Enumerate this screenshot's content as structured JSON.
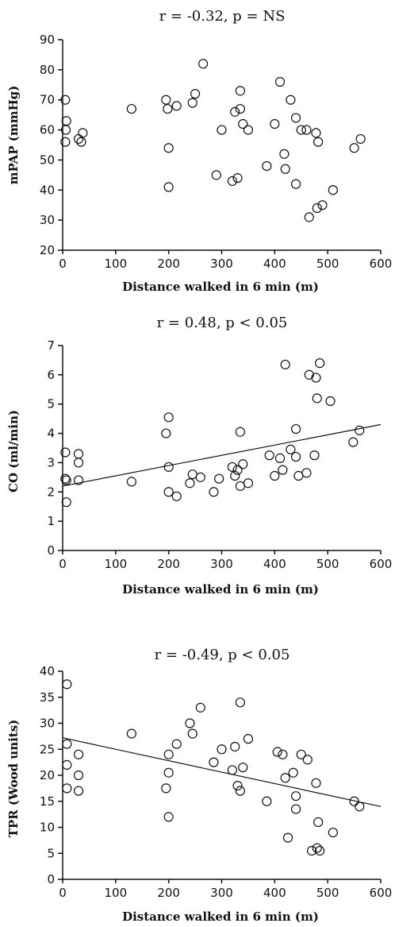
{
  "chart_data": [
    {
      "type": "scatter",
      "title": "r =  -0.32,  p = NS",
      "xlabel": "Distance walked in 6 min (m)",
      "ylabel": "mPAP (mmHg)",
      "xlim": [
        0,
        600
      ],
      "ylim": [
        20,
        90
      ],
      "xticks": [
        "0",
        "100",
        "200",
        "300",
        "400",
        "500",
        "600"
      ],
      "yticks": [
        "20",
        "30",
        "40",
        "50",
        "60",
        "70",
        "80",
        "90"
      ],
      "regression": null,
      "points": [
        [
          5,
          56
        ],
        [
          6,
          60
        ],
        [
          7,
          63
        ],
        [
          5,
          70
        ],
        [
          30,
          57
        ],
        [
          35,
          56
        ],
        [
          38,
          59
        ],
        [
          130,
          67
        ],
        [
          195,
          70
        ],
        [
          198,
          67
        ],
        [
          200,
          54
        ],
        [
          200,
          41
        ],
        [
          215,
          68
        ],
        [
          245,
          69
        ],
        [
          250,
          72
        ],
        [
          265,
          82
        ],
        [
          290,
          45
        ],
        [
          300,
          60
        ],
        [
          320,
          43
        ],
        [
          325,
          66
        ],
        [
          330,
          44
        ],
        [
          335,
          67
        ],
        [
          335,
          73
        ],
        [
          340,
          62
        ],
        [
          350,
          60
        ],
        [
          385,
          48
        ],
        [
          400,
          62
        ],
        [
          410,
          76
        ],
        [
          418,
          52
        ],
        [
          420,
          47
        ],
        [
          430,
          70
        ],
        [
          440,
          42
        ],
        [
          440,
          64
        ],
        [
          450,
          60
        ],
        [
          460,
          60
        ],
        [
          465,
          31
        ],
        [
          478,
          59
        ],
        [
          480,
          34
        ],
        [
          482,
          56
        ],
        [
          490,
          35
        ],
        [
          510,
          40
        ],
        [
          550,
          54
        ],
        [
          562,
          57
        ]
      ]
    },
    {
      "type": "scatter",
      "title": "r =  0.48,  p < 0.05",
      "xlabel": "Distance walked in 6 min (m)",
      "ylabel": "CO (ml/min)",
      "xlim": [
        0,
        600
      ],
      "ylim": [
        0,
        7
      ],
      "xticks": [
        "0",
        "100",
        "200",
        "300",
        "400",
        "500",
        "600"
      ],
      "yticks": [
        "0",
        "1",
        "2",
        "3",
        "4",
        "5",
        "6",
        "7"
      ],
      "regression": [
        [
          0,
          2.2
        ],
        [
          600,
          4.3
        ]
      ],
      "points": [
        [
          5,
          3.35
        ],
        [
          5,
          2.45
        ],
        [
          7,
          2.4
        ],
        [
          7,
          1.65
        ],
        [
          30,
          3.3
        ],
        [
          30,
          3.0
        ],
        [
          30,
          2.4
        ],
        [
          130,
          2.35
        ],
        [
          195,
          4.0
        ],
        [
          200,
          4.55
        ],
        [
          200,
          2.85
        ],
        [
          200,
          2.0
        ],
        [
          215,
          1.85
        ],
        [
          240,
          2.3
        ],
        [
          245,
          2.6
        ],
        [
          260,
          2.5
        ],
        [
          285,
          2.0
        ],
        [
          295,
          2.45
        ],
        [
          320,
          2.85
        ],
        [
          325,
          2.55
        ],
        [
          330,
          2.75
        ],
        [
          335,
          4.05
        ],
        [
          335,
          2.2
        ],
        [
          340,
          2.95
        ],
        [
          350,
          2.3
        ],
        [
          390,
          3.25
        ],
        [
          400,
          2.55
        ],
        [
          410,
          3.15
        ],
        [
          415,
          2.75
        ],
        [
          420,
          6.35
        ],
        [
          430,
          3.45
        ],
        [
          440,
          3.2
        ],
        [
          440,
          4.15
        ],
        [
          445,
          2.55
        ],
        [
          460,
          2.65
        ],
        [
          465,
          6.0
        ],
        [
          475,
          3.25
        ],
        [
          478,
          5.9
        ],
        [
          480,
          5.2
        ],
        [
          485,
          6.4
        ],
        [
          505,
          5.1
        ],
        [
          548,
          3.7
        ],
        [
          560,
          4.1
        ]
      ]
    },
    {
      "type": "scatter",
      "title": "r =  -0.49,  p < 0.05",
      "xlabel": "Distance walked in 6 min (m)",
      "ylabel": "TPR (Wood units)",
      "xlim": [
        0,
        600
      ],
      "ylim": [
        0,
        40
      ],
      "xticks": [
        "0",
        "100",
        "200",
        "300",
        "400",
        "500",
        "600"
      ],
      "yticks": [
        "0",
        "5",
        "10",
        "15",
        "20",
        "25",
        "30",
        "35",
        "40"
      ],
      "regression": [
        [
          0,
          27.2
        ],
        [
          600,
          14.0
        ]
      ],
      "points": [
        [
          8,
          37.5
        ],
        [
          8,
          26.0
        ],
        [
          8,
          22.0
        ],
        [
          8,
          17.5
        ],
        [
          30,
          24.0
        ],
        [
          30,
          20.0
        ],
        [
          30,
          17.0
        ],
        [
          130,
          28.0
        ],
        [
          195,
          17.5
        ],
        [
          200,
          24.0
        ],
        [
          200,
          20.5
        ],
        [
          200,
          12.0
        ],
        [
          215,
          26.0
        ],
        [
          240,
          30.0
        ],
        [
          245,
          28.0
        ],
        [
          260,
          33.0
        ],
        [
          285,
          22.5
        ],
        [
          300,
          25.0
        ],
        [
          320,
          21.0
        ],
        [
          325,
          25.5
        ],
        [
          330,
          18.0
        ],
        [
          335,
          34.0
        ],
        [
          335,
          17.0
        ],
        [
          340,
          21.5
        ],
        [
          350,
          27.0
        ],
        [
          385,
          15.0
        ],
        [
          405,
          24.5
        ],
        [
          415,
          24.0
        ],
        [
          420,
          19.5
        ],
        [
          425,
          8.0
        ],
        [
          435,
          20.5
        ],
        [
          440,
          13.5
        ],
        [
          440,
          16.0
        ],
        [
          450,
          24.0
        ],
        [
          462,
          23.0
        ],
        [
          470,
          5.5
        ],
        [
          478,
          18.5
        ],
        [
          480,
          6.0
        ],
        [
          482,
          11.0
        ],
        [
          485,
          5.5
        ],
        [
          510,
          9.0
        ],
        [
          550,
          15.0
        ],
        [
          560,
          14.0
        ]
      ]
    }
  ]
}
